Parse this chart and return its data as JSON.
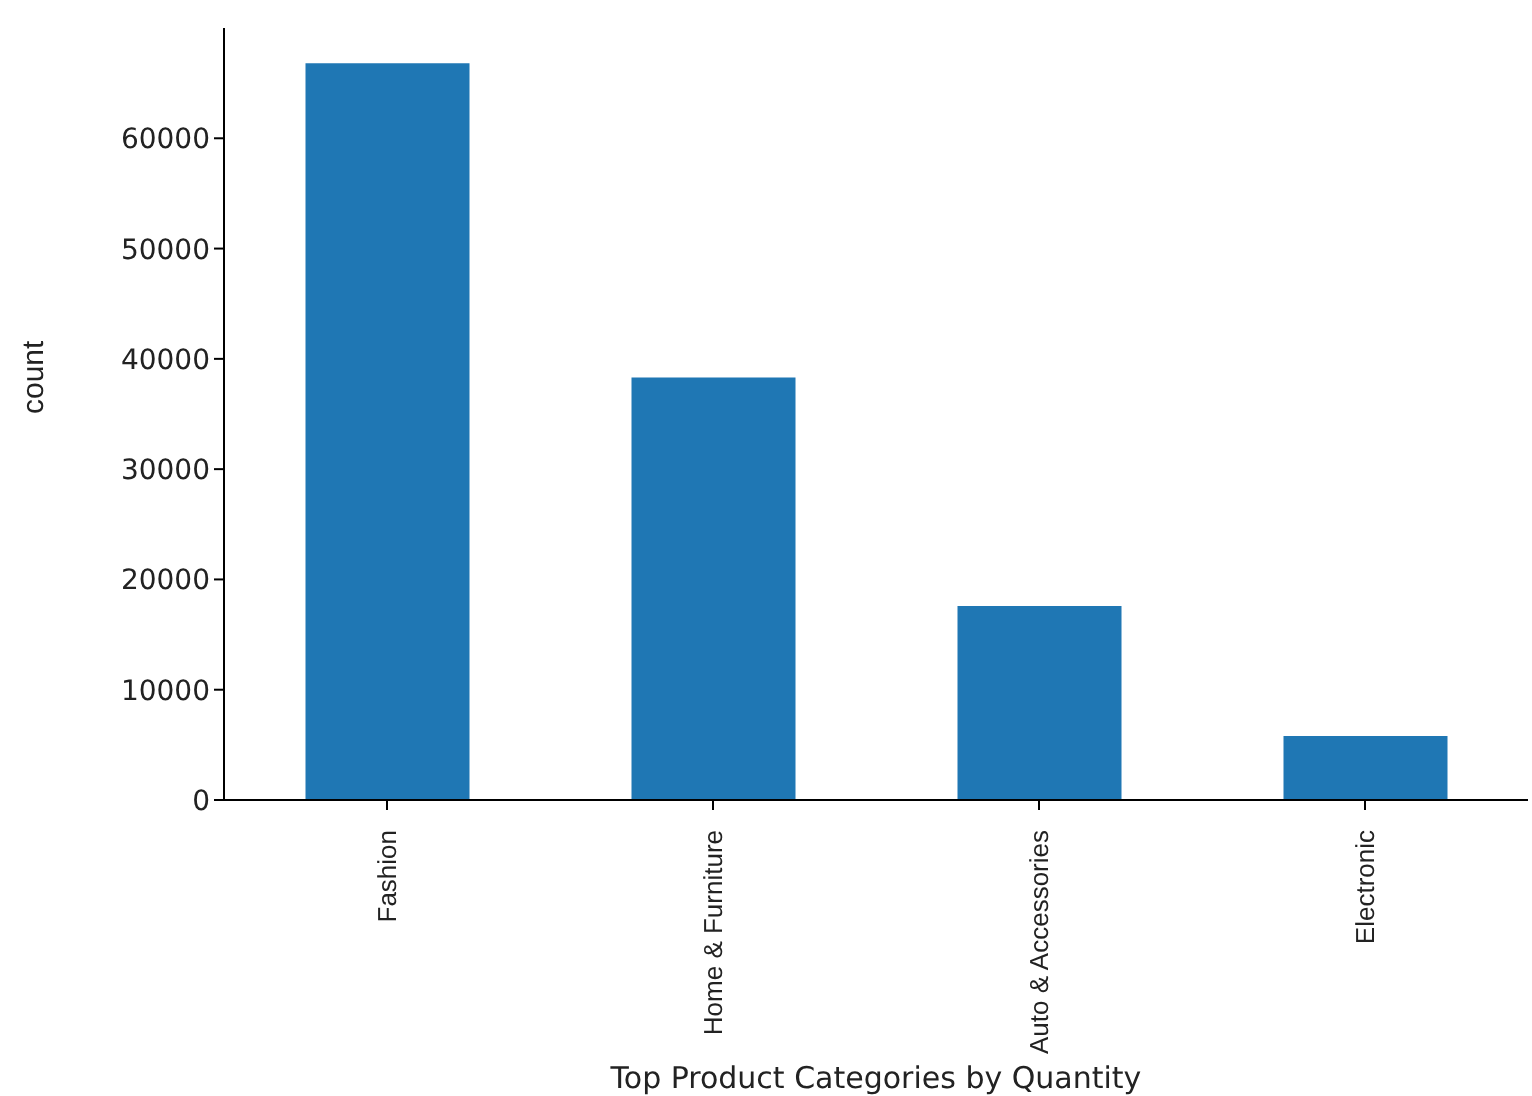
{
  "chart_data": {
    "type": "bar",
    "xlabel": "Top Product Categories by Quantity",
    "ylabel": "count",
    "categories": [
      "Fashion",
      "Home & Furniture",
      "Auto & Accessories",
      "Electronic"
    ],
    "values": [
      66800,
      38300,
      17600,
      5800
    ],
    "color": "#1f77b4",
    "ylim": [
      0,
      70000
    ],
    "yticks": [
      0,
      10000,
      20000,
      30000,
      40000,
      50000,
      60000
    ],
    "grid": false,
    "legend": false
  }
}
